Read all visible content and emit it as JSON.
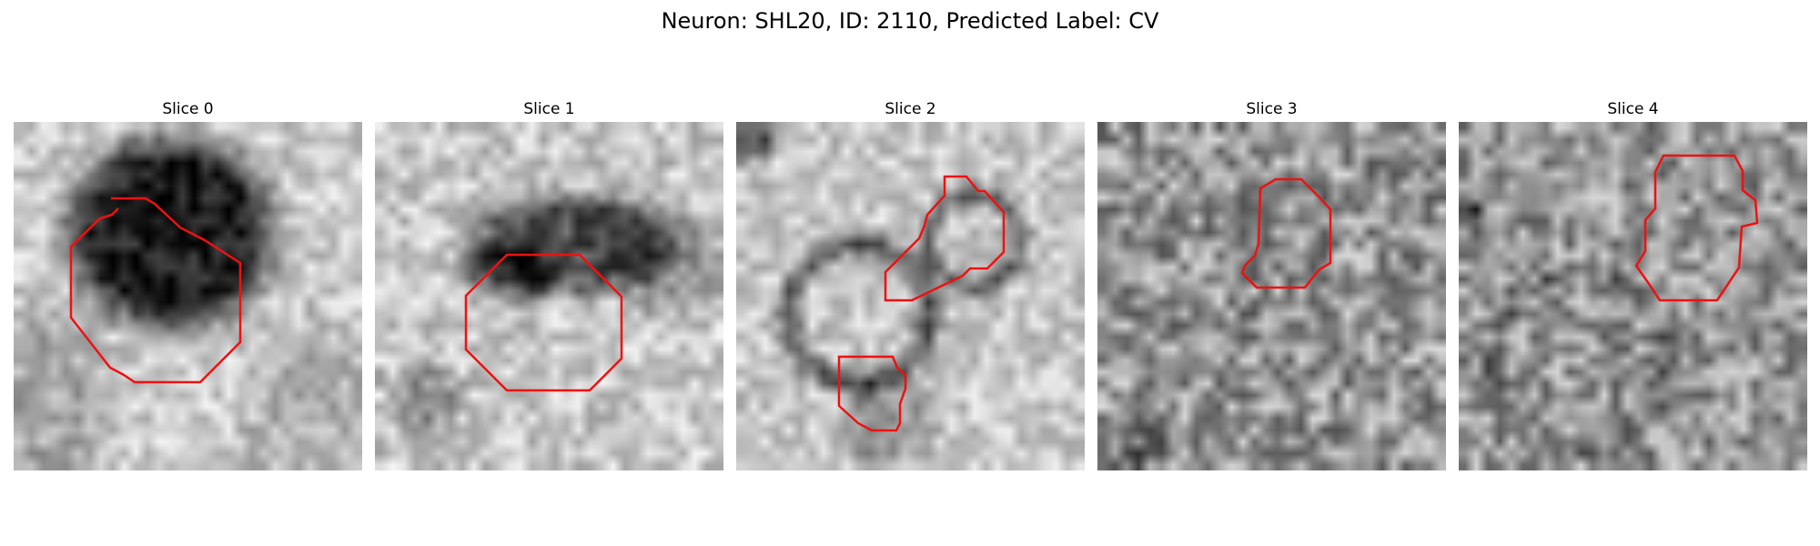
{
  "figure": {
    "title": "Neuron: SHL20, ID: 2110, Predicted Label: CV"
  },
  "panels": [
    {
      "title": "Slice 0"
    },
    {
      "title": "Slice 1"
    },
    {
      "title": "Slice 2"
    },
    {
      "title": "Slice 3"
    },
    {
      "title": "Slice 4"
    }
  ],
  "colors": {
    "contour": "#ee1111",
    "background": "#ffffff"
  }
}
